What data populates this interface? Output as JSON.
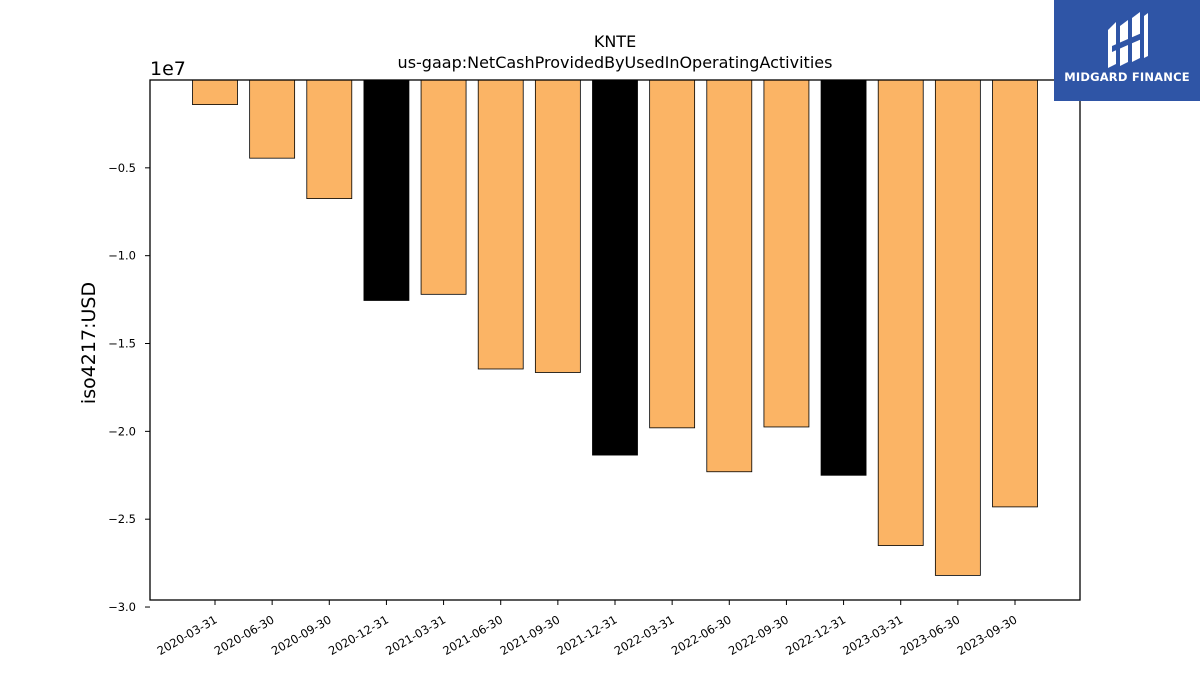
{
  "chart_data": {
    "type": "bar",
    "title": "KNTE",
    "subtitle": "us-gaap:NetCashProvidedByUsedInOperatingActivities",
    "ylabel": "iso4217:USD",
    "xlabel": "",
    "offset_label": "1e7",
    "categories": [
      "2020-03-31",
      "2020-06-30",
      "2020-09-30",
      "2020-12-31",
      "2021-03-31",
      "2021-06-30",
      "2021-09-30",
      "2021-12-31",
      "2022-03-31",
      "2022-06-30",
      "2022-09-30",
      "2022-12-31",
      "2023-03-31",
      "2023-06-30",
      "2023-09-30"
    ],
    "values": [
      -1400000,
      -4450000,
      -6750000,
      -12550000,
      -12200000,
      -16450000,
      -16650000,
      -21350000,
      -19800000,
      -22300000,
      -19750000,
      -22500000,
      -26500000,
      -28200000,
      -24300000
    ],
    "bar_colors": [
      "#fbb465",
      "#fbb465",
      "#fbb465",
      "#000000",
      "#fbb465",
      "#fbb465",
      "#fbb465",
      "#000000",
      "#fbb465",
      "#fbb465",
      "#fbb465",
      "#000000",
      "#fbb465",
      "#fbb465",
      "#fbb465"
    ],
    "ylim": [
      -29600000,
      0
    ],
    "yticks": [
      -5000000,
      -10000000,
      -15000000,
      -20000000,
      -25000000,
      -30000000
    ],
    "ytick_labels": [
      "−0.5",
      "−1.0",
      "−1.5",
      "−2.0",
      "−2.5",
      "−3.0"
    ],
    "grid": false,
    "legend": "none"
  },
  "logo": {
    "name": "MIDGARD FINANCE",
    "icon": "midgard-logo-icon",
    "color": "#2f55a6"
  }
}
